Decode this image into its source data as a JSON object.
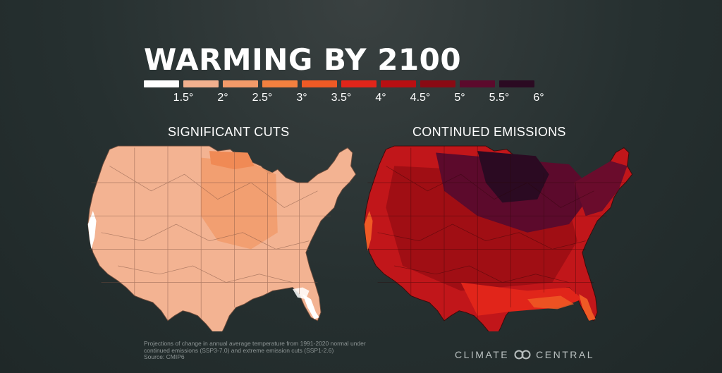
{
  "title": "WARMING BY 2100",
  "legend": [
    {
      "label": "1.5°",
      "color": "#ffffff"
    },
    {
      "label": "2°",
      "color": "#f2b08e"
    },
    {
      "label": "2.5°",
      "color": "#f39a69"
    },
    {
      "label": "3°",
      "color": "#f3803f"
    },
    {
      "label": "3.5°",
      "color": "#ef5a25"
    },
    {
      "label": "4°",
      "color": "#e1251a"
    },
    {
      "label": "4.5°",
      "color": "#b80f12"
    },
    {
      "label": "5°",
      "color": "#8a0a14"
    },
    {
      "label": "5.5°",
      "color": "#5c0a2c"
    },
    {
      "label": "6°",
      "color": "#2b0a22"
    }
  ],
  "maps": {
    "left_label": "SIGNIFICANT CUTS",
    "right_label": "CONTINUED EMISSIONS"
  },
  "footnote": {
    "line1": "Projections of change in annual average temperature from 1991-2020 normal under",
    "line2": "continued emissions (SSP3-7.0) and extreme emission cuts (SSP1-2.6)",
    "line3": "Source: CMIP6"
  },
  "brand": {
    "left": "CLIMATE",
    "right": "CENTRAL"
  }
}
